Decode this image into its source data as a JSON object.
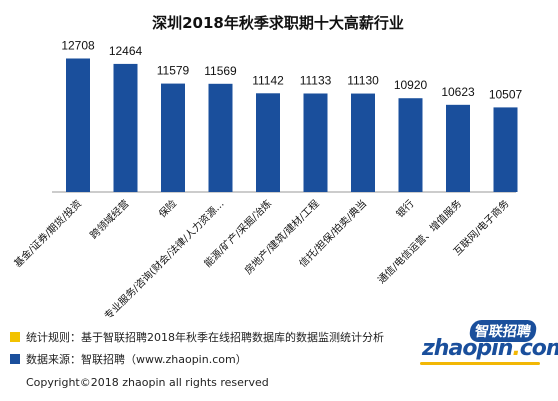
{
  "chart_data": {
    "type": "bar",
    "title": "深圳2018年秋季求职期十大高薪行业",
    "categories": [
      "基金/证券/期货/投资",
      "跨领域经营",
      "保险",
      "专业服务/咨询(财会/法律/人力资源…",
      "能源/矿产/采掘/冶炼",
      "房地产/建筑/建材/工程",
      "信托/担保/拍卖/典当",
      "银行",
      "通信/电信运营、增值服务",
      "互联网/电子商务"
    ],
    "values": [
      12708,
      12464,
      11579,
      11569,
      11142,
      11133,
      11130,
      10920,
      10623,
      10507
    ],
    "value_labels": [
      "12708",
      "12464",
      "11579",
      "11569",
      "11142",
      "11133",
      "11130",
      "10920",
      "10623",
      "10507"
    ],
    "ylim": [
      6700,
      13000
    ],
    "bar_color": "#1a4f9c",
    "grid": false,
    "legend": "none"
  },
  "notes": {
    "stat_rule": "统计规则：基于智联招聘2018年秋季在线招聘数据库的数据监测统计分析",
    "stat_rule_color": "#f2c200",
    "source": "数据来源：智联招聘（www.zhaopin.com）",
    "source_color": "#1a4f9c"
  },
  "copyright": "Copyright©2018 zhaopin all rights reserved",
  "logo": {
    "cn": "智联招聘",
    "en_main": "zhaopin",
    "en_dot": ".",
    "en_tail": "com"
  }
}
